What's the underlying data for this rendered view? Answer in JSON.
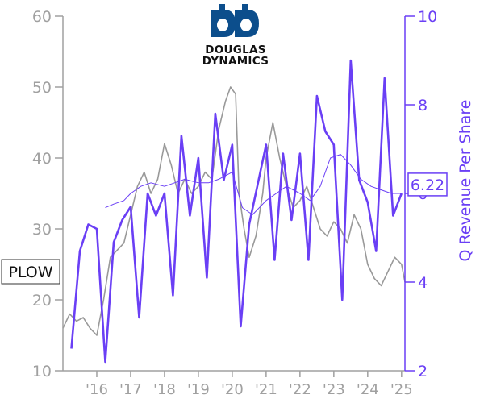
{
  "chart_data": {
    "type": "line",
    "ticker": "PLOW",
    "current_value_label": "6.22",
    "y_right_label": "Q Revenue Per Share",
    "x_tick_labels": [
      "'16",
      "'17",
      "'18",
      "'19",
      "'20",
      "'21",
      "'22",
      "'23",
      "'24",
      "'25"
    ],
    "x_ticks": [
      2016,
      2017,
      2018,
      2019,
      2020,
      2021,
      2022,
      2023,
      2024,
      2025
    ],
    "xlim": [
      2015.0,
      2025.1
    ],
    "ylim_left": [
      10,
      60
    ],
    "ylim_right": [
      2,
      10
    ],
    "y_left_ticks": [
      10,
      20,
      30,
      40,
      50,
      60
    ],
    "y_right_ticks": [
      2,
      4,
      6,
      8,
      10
    ],
    "series": [
      {
        "name": "",
        "axis": "left",
        "color": "#999999",
        "x": [
          2015.0,
          2015.2,
          2015.4,
          2015.6,
          2015.8,
          2016.0,
          2016.2,
          2016.4,
          2016.6,
          2016.8,
          2017.0,
          2017.2,
          2017.4,
          2017.6,
          2017.8,
          2018.0,
          2018.2,
          2018.4,
          2018.6,
          2018.8,
          2019.0,
          2019.2,
          2019.4,
          2019.6,
          2019.8,
          2019.95,
          2020.1,
          2020.2,
          2020.35,
          2020.5,
          2020.7,
          2020.9,
          2021.0,
          2021.2,
          2021.4,
          2021.6,
          2021.8,
          2022.0,
          2022.2,
          2022.4,
          2022.6,
          2022.8,
          2023.0,
          2023.2,
          2023.4,
          2023.6,
          2023.8,
          2024.0,
          2024.2,
          2024.4,
          2024.6,
          2024.8,
          2025.0,
          2025.1
        ],
        "values": [
          16,
          18,
          17,
          17.5,
          16,
          15,
          20,
          26,
          27,
          28,
          32,
          36,
          38,
          35,
          37,
          42,
          39,
          35,
          37,
          35,
          36,
          38,
          37,
          44,
          48,
          50,
          49,
          35,
          30,
          26,
          29,
          35,
          40,
          45,
          40,
          36,
          33,
          34,
          36,
          33,
          30,
          29,
          31,
          30,
          28,
          32,
          30,
          25,
          23,
          22,
          24,
          26,
          25,
          22.5
        ]
      },
      {
        "name": "",
        "axis": "left",
        "color": "#6a3ff5",
        "x": [
          2016.25,
          2016.5,
          2016.8,
          2017.0,
          2017.3,
          2017.6,
          2018.0,
          2018.3,
          2018.6,
          2019.0,
          2019.3,
          2019.6,
          2020.0,
          2020.3,
          2020.6,
          2021.0,
          2021.3,
          2021.6,
          2022.0,
          2022.3,
          2022.6,
          2022.9,
          2023.2,
          2023.5,
          2023.8,
          2024.1,
          2024.4,
          2024.7,
          2025.0
        ],
        "values": [
          33,
          33.5,
          34,
          35,
          36,
          36.5,
          36,
          36.5,
          37,
          36.5,
          36.5,
          37,
          38,
          33,
          32,
          34,
          35,
          36,
          35,
          34,
          36,
          40,
          40.5,
          39,
          37,
          36,
          35.5,
          35,
          35
        ]
      },
      {
        "name": "",
        "axis": "right",
        "color": "#6a3ff5",
        "x": [
          2015.25,
          2015.5,
          2015.75,
          2016.0,
          2016.25,
          2016.5,
          2016.75,
          2017.0,
          2017.25,
          2017.5,
          2017.75,
          2018.0,
          2018.25,
          2018.5,
          2018.75,
          2019.0,
          2019.25,
          2019.5,
          2019.75,
          2020.0,
          2020.25,
          2020.5,
          2020.75,
          2021.0,
          2021.25,
          2021.5,
          2021.75,
          2022.0,
          2022.25,
          2022.5,
          2022.75,
          2023.0,
          2023.25,
          2023.5,
          2023.75,
          2024.0,
          2024.25,
          2024.5,
          2024.75,
          2025.0
        ],
        "values": [
          2.5,
          4.7,
          5.3,
          5.2,
          2.2,
          4.9,
          5.4,
          5.7,
          3.2,
          6.0,
          5.5,
          6.0,
          3.7,
          7.3,
          5.5,
          6.8,
          4.1,
          7.8,
          6.3,
          7.1,
          3.0,
          5.3,
          6.2,
          7.1,
          4.5,
          6.9,
          5.4,
          6.9,
          4.5,
          8.2,
          7.4,
          7.1,
          3.6,
          9.0,
          6.3,
          5.8,
          4.7,
          8.6,
          5.5,
          6.0
        ]
      }
    ]
  }
}
